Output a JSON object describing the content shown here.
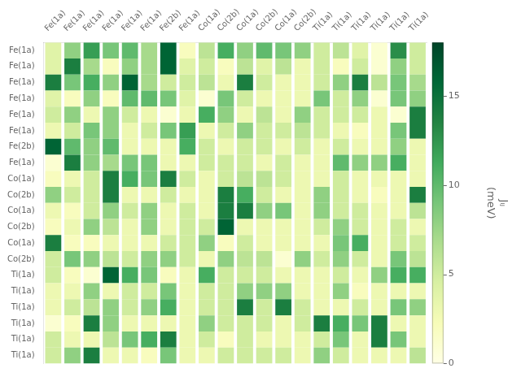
{
  "chart_data": {
    "type": "heatmap",
    "row_labels": [
      "Fe(1a)",
      "Fe(1a)",
      "Fe(1a)",
      "Fe(1a)",
      "Fe(1a)",
      "Fe(1a)",
      "Fe(2b)",
      "Fe(1a)",
      "Co(1a)",
      "Co(2b)",
      "Co(1a)",
      "Co(2b)",
      "Co(1a)",
      "Co(2b)",
      "Ti(1a)",
      "Ti(1a)",
      "Ti(1a)",
      "Ti(1a)",
      "Ti(1a)",
      "Ti(1a)"
    ],
    "col_labels": [
      "Fe(1a)",
      "Fe(1a)",
      "Fe(1a)",
      "Fe(1a)",
      "Fe(1a)",
      "Fe(1a)",
      "Fe(2b)",
      "Fe(1a)",
      "Co(1a)",
      "Co(2b)",
      "Co(1a)",
      "Co(2b)",
      "Co(1a)",
      "Co(2b)",
      "Ti(1a)",
      "Ti(1a)",
      "Ti(1a)",
      "Ti(1a)",
      "Ti(1a)",
      "Ti(1a)"
    ],
    "matrix": [
      [
        4,
        8,
        12,
        9,
        10,
        7,
        16,
        2,
        6,
        11,
        8,
        10,
        9,
        8,
        5,
        6,
        4,
        1,
        13,
        5
      ],
      [
        4,
        14,
        7,
        2,
        8,
        7,
        16,
        4,
        5,
        2,
        6,
        4,
        6,
        3,
        5,
        2,
        5,
        1,
        8,
        5
      ],
      [
        14,
        9,
        11,
        8,
        16,
        7,
        5,
        5,
        6,
        3,
        14,
        5,
        3,
        3,
        5,
        8,
        14,
        6,
        9,
        7
      ],
      [
        4,
        2,
        8,
        2,
        10,
        10,
        9,
        4,
        1,
        9,
        5,
        3,
        3,
        3,
        9,
        5,
        8,
        1,
        9,
        8
      ],
      [
        5,
        8,
        3,
        8,
        5,
        3,
        1,
        3,
        11,
        8,
        3,
        6,
        3,
        8,
        5,
        5,
        5,
        3,
        1,
        14
      ],
      [
        3,
        5,
        9,
        8,
        3,
        5,
        9,
        12,
        3,
        5,
        8,
        5,
        5,
        6,
        5,
        3,
        2,
        3,
        9,
        14
      ],
      [
        16,
        10,
        8,
        10,
        3,
        3,
        3,
        11,
        5,
        3,
        5,
        5,
        3,
        5,
        3,
        5,
        3,
        3,
        8,
        3
      ],
      [
        1,
        14,
        8,
        7,
        9,
        9,
        3,
        3,
        5,
        5,
        5,
        3,
        5,
        3,
        3,
        10,
        8,
        8,
        11,
        3
      ],
      [
        2,
        3,
        5,
        14,
        11,
        9,
        14,
        5,
        3,
        5,
        6,
        6,
        5,
        3,
        3,
        5,
        3,
        3,
        3,
        3
      ],
      [
        8,
        5,
        5,
        14,
        3,
        3,
        5,
        3,
        3,
        14,
        11,
        5,
        3,
        3,
        8,
        5,
        3,
        2,
        3,
        14
      ],
      [
        3,
        2,
        5,
        8,
        5,
        8,
        3,
        5,
        3,
        14,
        14,
        8,
        9,
        3,
        8,
        5,
        5,
        3,
        3,
        6
      ],
      [
        2,
        3,
        8,
        6,
        3,
        8,
        3,
        5,
        5,
        16,
        3,
        3,
        3,
        3,
        5,
        8,
        5,
        3,
        5,
        3
      ],
      [
        14,
        2,
        2,
        3,
        3,
        3,
        5,
        5,
        8,
        2,
        5,
        3,
        3,
        3,
        3,
        9,
        11,
        3,
        5,
        5
      ],
      [
        5,
        9,
        8,
        6,
        5,
        8,
        8,
        5,
        3,
        8,
        6,
        6,
        1,
        8,
        5,
        8,
        5,
        3,
        9,
        6
      ],
      [
        5,
        2,
        1,
        16,
        11,
        9,
        2,
        3,
        11,
        5,
        5,
        5,
        3,
        3,
        3,
        5,
        3,
        8,
        11,
        11
      ],
      [
        3,
        3,
        8,
        3,
        5,
        5,
        9,
        3,
        5,
        5,
        8,
        8,
        8,
        3,
        3,
        8,
        2,
        3,
        3,
        3
      ],
      [
        3,
        5,
        6,
        8,
        5,
        8,
        11,
        3,
        5,
        5,
        14,
        5,
        14,
        5,
        3,
        3,
        5,
        3,
        9,
        8
      ],
      [
        1,
        2,
        14,
        8,
        3,
        3,
        3,
        3,
        8,
        5,
        5,
        5,
        3,
        5,
        14,
        11,
        9,
        14,
        3,
        3
      ],
      [
        5,
        3,
        3,
        6,
        9,
        11,
        14,
        3,
        5,
        2,
        5,
        3,
        3,
        3,
        5,
        9,
        3,
        14,
        9,
        3
      ],
      [
        5,
        8,
        14,
        3,
        3,
        2,
        9,
        3,
        3,
        5,
        5,
        5,
        5,
        3,
        8,
        5,
        3,
        3,
        3,
        6
      ]
    ],
    "colorbar": {
      "range": [
        0,
        18
      ],
      "ticks": [
        0,
        5,
        10,
        15
      ],
      "label": [
        "Jᵢⱼ",
        "(meV)"
      ]
    },
    "grid": false,
    "legend": false
  }
}
